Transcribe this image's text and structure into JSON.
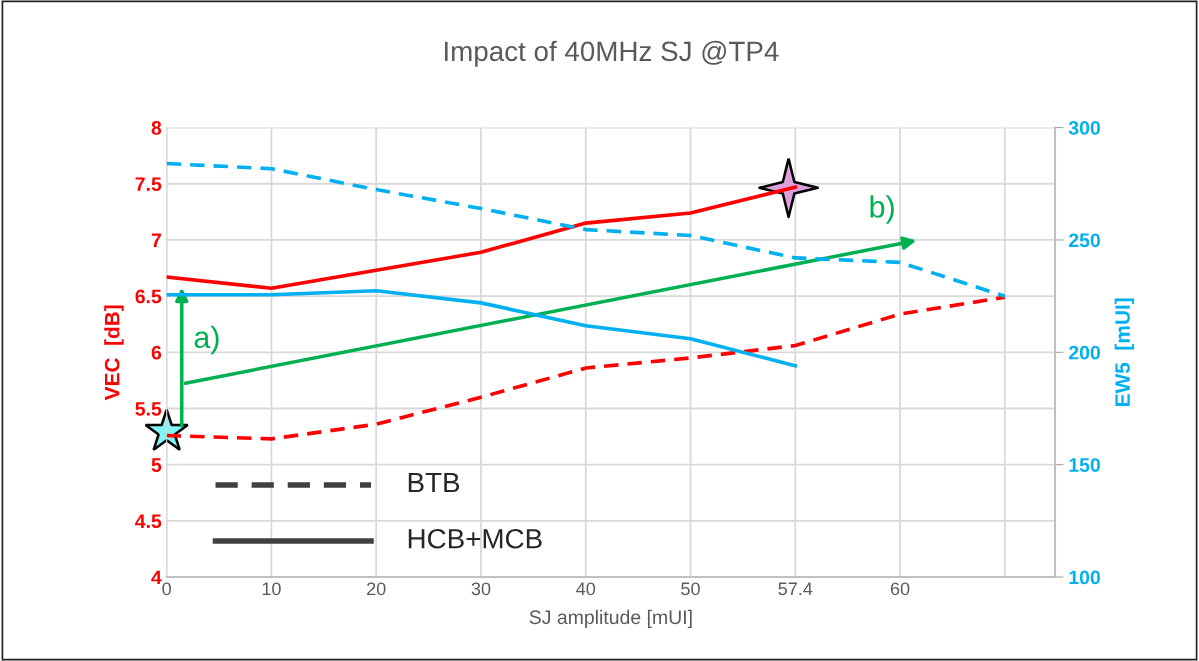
{
  "chart_data": {
    "type": "line",
    "title": "Impact of 40MHz SJ @TP4",
    "xlabel": "SJ amplitude [mUI]",
    "ylabel": "VEC  [dB]",
    "y2label": "EW5  [mUI]",
    "categories": [
      "0",
      "10",
      "20",
      "30",
      "40",
      "50",
      "57.4",
      "60",
      null
    ],
    "series": [
      {
        "color": "#ff0000",
        "line_style": "solid",
        "values": [
          6.67,
          6.57,
          6.73,
          6.89,
          7.15,
          7.24,
          7.47,
          null,
          null
        ]
      },
      {
        "color": "#ff0000",
        "line_style": "dashed",
        "values": [
          5.26,
          5.23,
          5.36,
          5.6,
          5.86,
          5.95,
          6.06,
          6.34,
          6.49
        ]
      },
      {
        "color": "#00b0f0",
        "line_style": "solid",
        "axis": "y2",
        "values": [
          225.6,
          225.6,
          227.4,
          222,
          211.8,
          206,
          194,
          null,
          null
        ]
      },
      {
        "color": "#00b0f0",
        "line_style": "dashed",
        "axis": "y2",
        "values": [
          284,
          281.7,
          272.4,
          264,
          254.6,
          252,
          242,
          240,
          225
        ]
      }
    ],
    "ylim": [
      4,
      8
    ],
    "yticks": [
      4,
      4.5,
      5,
      5.5,
      6,
      6.5,
      7,
      7.5,
      8
    ],
    "y2lim": [
      100,
      300
    ],
    "y2ticks": [
      100,
      150,
      200,
      250,
      300
    ],
    "annotations": [
      "a)",
      "b)",
      "BTB",
      "HCB+MCB"
    ],
    "grid": true,
    "marker": "none"
  }
}
